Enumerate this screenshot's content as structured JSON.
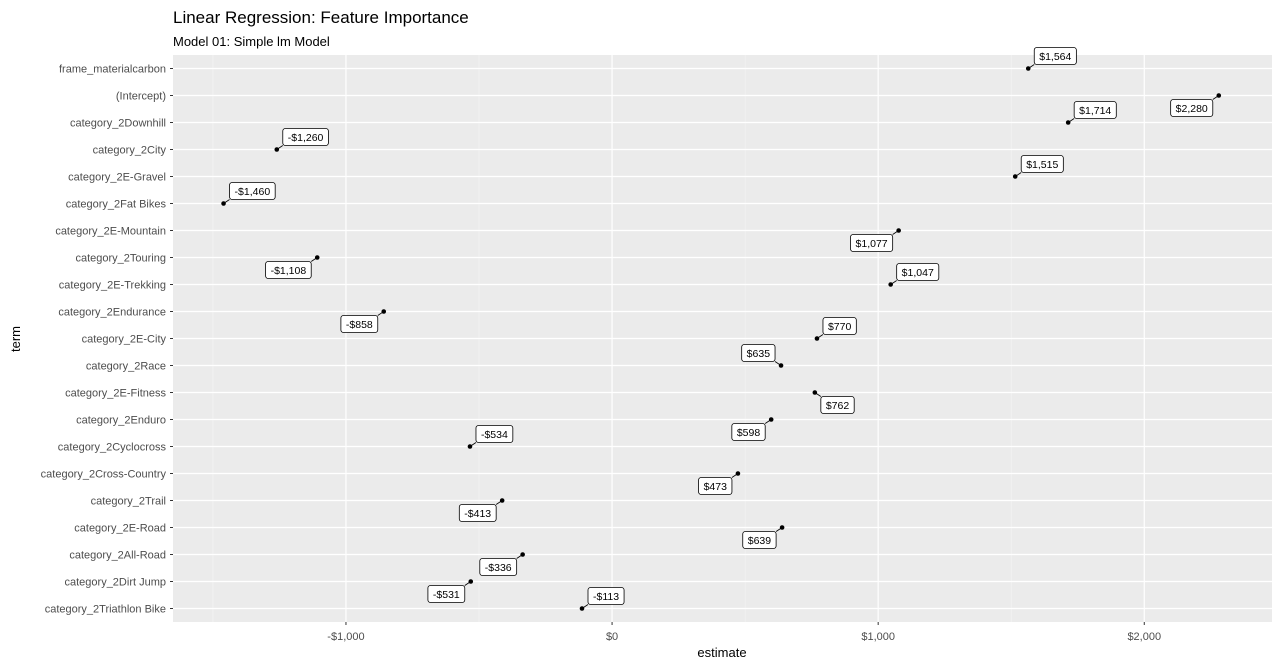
{
  "chart_data": {
    "type": "scatter",
    "title": "Linear Regression: Feature Importance",
    "subtitle": "Model 01: Simple lm Model",
    "xlabel": "estimate",
    "ylabel": "term",
    "xlim": [
      -1650,
      2480
    ],
    "grid": true,
    "x_ticks": [
      {
        "value": -1000,
        "label": "-$1,000"
      },
      {
        "value": 0,
        "label": "$0"
      },
      {
        "value": 1000,
        "label": "$1,000"
      },
      {
        "value": 2000,
        "label": "$2,000"
      }
    ],
    "points": [
      {
        "term": "frame_materialcarbon",
        "estimate": 1564,
        "label": "$1,564",
        "label_side": "above-right"
      },
      {
        "term": "(Intercept)",
        "estimate": 2280,
        "label": "$2,280",
        "label_side": "below-left"
      },
      {
        "term": "category_2Downhill",
        "estimate": 1714,
        "label": "$1,714",
        "label_side": "above-right"
      },
      {
        "term": "category_2City",
        "estimate": -1260,
        "label": "-$1,260",
        "label_side": "above-right"
      },
      {
        "term": "category_2E-Gravel",
        "estimate": 1515,
        "label": "$1,515",
        "label_side": "above-right"
      },
      {
        "term": "category_2Fat Bikes",
        "estimate": -1460,
        "label": "-$1,460",
        "label_side": "above-right"
      },
      {
        "term": "category_2E-Mountain",
        "estimate": 1077,
        "label": "$1,077",
        "label_side": "below-left"
      },
      {
        "term": "category_2Touring",
        "estimate": -1108,
        "label": "-$1,108",
        "label_side": "below-left"
      },
      {
        "term": "category_2E-Trekking",
        "estimate": 1047,
        "label": "$1,047",
        "label_side": "above-right"
      },
      {
        "term": "category_2Endurance",
        "estimate": -858,
        "label": "-$858",
        "label_side": "below-left"
      },
      {
        "term": "category_2E-City",
        "estimate": 770,
        "label": "$770",
        "label_side": "above-right"
      },
      {
        "term": "category_2Race",
        "estimate": 635,
        "label": "$635",
        "label_side": "above-left"
      },
      {
        "term": "category_2E-Fitness",
        "estimate": 762,
        "label": "$762",
        "label_side": "below-right"
      },
      {
        "term": "category_2Enduro",
        "estimate": 598,
        "label": "$598",
        "label_side": "below-left"
      },
      {
        "term": "category_2Cyclocross",
        "estimate": -534,
        "label": "-$534",
        "label_side": "above-right"
      },
      {
        "term": "category_2Cross-Country",
        "estimate": 473,
        "label": "$473",
        "label_side": "below-left"
      },
      {
        "term": "category_2Trail",
        "estimate": -413,
        "label": "-$413",
        "label_side": "below-left"
      },
      {
        "term": "category_2E-Road",
        "estimate": 639,
        "label": "$639",
        "label_side": "below-left"
      },
      {
        "term": "category_2All-Road",
        "estimate": -336,
        "label": "-$336",
        "label_side": "below-left"
      },
      {
        "term": "category_2Dirt Jump",
        "estimate": -531,
        "label": "-$531",
        "label_side": "below-left"
      },
      {
        "term": "category_2Triathlon Bike",
        "estimate": -113,
        "label": "-$113",
        "label_side": "above-right"
      }
    ]
  }
}
